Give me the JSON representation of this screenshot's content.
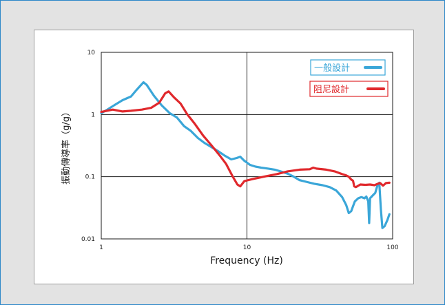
{
  "chart_data": {
    "type": "line",
    "xscale": "log",
    "yscale": "log",
    "xlim": [
      1,
      100
    ],
    "ylim": [
      0.01,
      10
    ],
    "grid": true,
    "legend_placement": "top-right",
    "xlabel": "Frequency (Hz)",
    "ylabel": "振動傳導率（g/g）",
    "x_ticks": [
      "1",
      "10",
      "100"
    ],
    "y_ticks": [
      "10",
      "1",
      "0.1",
      "0.01"
    ],
    "series": [
      {
        "name": "一般設計",
        "color": "#3aa6d8",
        "points": [
          [
            1.0,
            1.05
          ],
          [
            1.1,
            1.2
          ],
          [
            1.25,
            1.45
          ],
          [
            1.4,
            1.7
          ],
          [
            1.6,
            1.95
          ],
          [
            1.75,
            2.5
          ],
          [
            1.95,
            3.3
          ],
          [
            2.05,
            3.0
          ],
          [
            2.3,
            2.0
          ],
          [
            2.6,
            1.4
          ],
          [
            2.95,
            1.05
          ],
          [
            3.3,
            0.9
          ],
          [
            3.7,
            0.65
          ],
          [
            4.1,
            0.55
          ],
          [
            4.6,
            0.42
          ],
          [
            5.1,
            0.35
          ],
          [
            5.7,
            0.3
          ],
          [
            6.3,
            0.26
          ],
          [
            7.0,
            0.22
          ],
          [
            7.8,
            0.19
          ],
          [
            8.5,
            0.2
          ],
          [
            9.0,
            0.21
          ],
          [
            9.6,
            0.18
          ],
          [
            10.5,
            0.155
          ],
          [
            11.5,
            0.145
          ],
          [
            12.5,
            0.14
          ],
          [
            14.0,
            0.135
          ],
          [
            15.5,
            0.13
          ],
          [
            17.0,
            0.122
          ],
          [
            19.0,
            0.112
          ],
          [
            21.0,
            0.1
          ],
          [
            23.0,
            0.088
          ],
          [
            26.0,
            0.082
          ],
          [
            29.0,
            0.077
          ],
          [
            33.0,
            0.073
          ],
          [
            37.0,
            0.068
          ],
          [
            41.0,
            0.06
          ],
          [
            45.0,
            0.047
          ],
          [
            48.0,
            0.035
          ],
          [
            50.0,
            0.026
          ],
          [
            52.0,
            0.028
          ],
          [
            55.0,
            0.04
          ],
          [
            58.0,
            0.045
          ],
          [
            61.0,
            0.047
          ],
          [
            64.0,
            0.045
          ],
          [
            66.0,
            0.048
          ],
          [
            68.0,
            0.04
          ],
          [
            69.0,
            0.018
          ],
          [
            70.0,
            0.045
          ],
          [
            73.0,
            0.05
          ],
          [
            76.0,
            0.055
          ],
          [
            79.0,
            0.075
          ],
          [
            81.0,
            0.08
          ],
          [
            83.0,
            0.03
          ],
          [
            85.0,
            0.015
          ],
          [
            88.0,
            0.016
          ],
          [
            92.0,
            0.02
          ],
          [
            95.0,
            0.025
          ]
        ]
      },
      {
        "name": "阻尼設計",
        "color": "#e0282c",
        "points": [
          [
            1.0,
            1.1
          ],
          [
            1.2,
            1.2
          ],
          [
            1.4,
            1.12
          ],
          [
            1.6,
            1.15
          ],
          [
            1.9,
            1.2
          ],
          [
            2.2,
            1.28
          ],
          [
            2.5,
            1.55
          ],
          [
            2.75,
            2.2
          ],
          [
            2.9,
            2.35
          ],
          [
            3.15,
            1.9
          ],
          [
            3.5,
            1.5
          ],
          [
            3.9,
            1.0
          ],
          [
            4.4,
            0.7
          ],
          [
            5.0,
            0.46
          ],
          [
            5.7,
            0.32
          ],
          [
            6.5,
            0.22
          ],
          [
            7.2,
            0.16
          ],
          [
            8.0,
            0.1
          ],
          [
            8.6,
            0.075
          ],
          [
            9.0,
            0.07
          ],
          [
            9.6,
            0.085
          ],
          [
            11.0,
            0.092
          ],
          [
            13.0,
            0.1
          ],
          [
            16.0,
            0.11
          ],
          [
            19.0,
            0.122
          ],
          [
            23.0,
            0.13
          ],
          [
            27.0,
            0.132
          ],
          [
            28.5,
            0.14
          ],
          [
            30.0,
            0.135
          ],
          [
            35.0,
            0.13
          ],
          [
            40.0,
            0.122
          ],
          [
            45.0,
            0.11
          ],
          [
            48.0,
            0.105
          ],
          [
            50.0,
            0.1
          ],
          [
            52.0,
            0.09
          ],
          [
            53.5,
            0.086
          ],
          [
            54.5,
            0.07
          ],
          [
            56.0,
            0.068
          ],
          [
            60.0,
            0.075
          ],
          [
            65.0,
            0.074
          ],
          [
            70.0,
            0.075
          ],
          [
            75.0,
            0.073
          ],
          [
            79.0,
            0.077
          ],
          [
            82.0,
            0.079
          ],
          [
            86.0,
            0.072
          ],
          [
            90.0,
            0.079
          ],
          [
            95.0,
            0.08
          ]
        ]
      }
    ]
  }
}
